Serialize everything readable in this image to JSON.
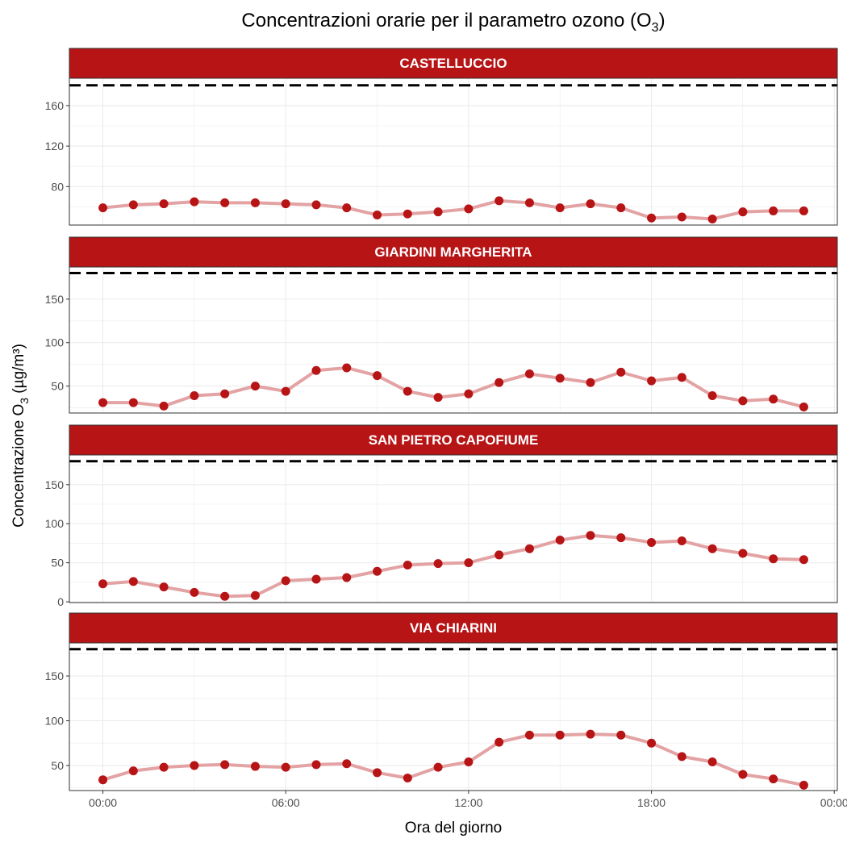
{
  "chart_data": {
    "type": "line",
    "title": "Concentrazioni orarie per il parametro ozono (O3)",
    "title_main": "Concentrazioni orarie per il parametro ozono (O",
    "title_sub": "3",
    "title_end": ")",
    "xlabel": "Ora del giorno",
    "ylabel": "Concentrazione O3 (µg/m³)",
    "ylabel_main": "Concentrazione O",
    "ylabel_sub": "3",
    "ylabel_end": " (µg/m³)",
    "x_tick_labels": [
      "00:00",
      "06:00",
      "12:00",
      "18:00",
      "00:00"
    ],
    "x_tick_hours": [
      0,
      6,
      12,
      18,
      24
    ],
    "xlim_hours": [
      -1.1,
      24.1
    ],
    "threshold": 180,
    "colors": {
      "strip": "#b71416",
      "line": "#e3a3a4",
      "point": "#b71416",
      "threshold": "#000000"
    },
    "x_hours": [
      0,
      1,
      2,
      3,
      4,
      5,
      6,
      7,
      8,
      9,
      10,
      11,
      12,
      13,
      14,
      15,
      16,
      17,
      18,
      19,
      20,
      21,
      22,
      23
    ],
    "panels": [
      {
        "name": "CASTELLUCCIO",
        "ylim": [
          42,
          187
        ],
        "y_ticks": [
          80,
          120,
          160
        ],
        "values": [
          59,
          62,
          63,
          65,
          64,
          64,
          63,
          62,
          59,
          52,
          53,
          55,
          58,
          66,
          64,
          59,
          63,
          59,
          49,
          50,
          48,
          55,
          56,
          56
        ]
      },
      {
        "name": "GIARDINI MARGHERITA",
        "ylim": [
          19,
          187
        ],
        "y_ticks": [
          50,
          100,
          150
        ],
        "values": [
          31,
          31,
          27,
          39,
          41,
          50,
          44,
          68,
          71,
          62,
          44,
          37,
          41,
          54,
          64,
          59,
          54,
          66,
          56,
          60,
          39,
          33,
          35,
          26
        ]
      },
      {
        "name": "SAN PIETRO CAPOFIUME",
        "ylim": [
          -1,
          188
        ],
        "y_ticks": [
          0,
          50,
          100,
          150
        ],
        "values": [
          23,
          26,
          19,
          12,
          7,
          8,
          27,
          29,
          31,
          39,
          47,
          49,
          50,
          60,
          68,
          79,
          85,
          82,
          76,
          78,
          68,
          62,
          55,
          54
        ]
      },
      {
        "name": "VIA CHIARINI",
        "ylim": [
          22,
          187
        ],
        "y_ticks": [
          50,
          100,
          150
        ],
        "values": [
          34,
          44,
          48,
          50,
          51,
          49,
          48,
          51,
          52,
          42,
          36,
          48,
          54,
          76,
          84,
          84,
          85,
          84,
          75,
          60,
          54,
          40,
          35,
          28
        ]
      }
    ]
  }
}
